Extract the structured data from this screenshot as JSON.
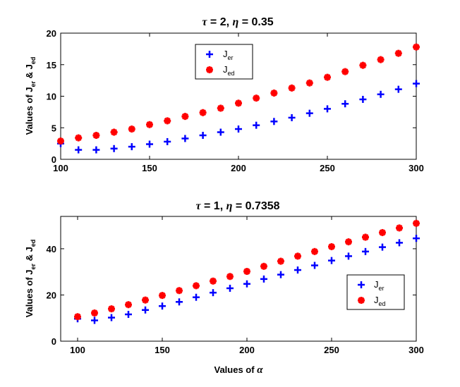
{
  "chart_data": [
    {
      "type": "scatter",
      "title_sym1": "τ",
      "title_val1": " = 2, ",
      "title_sym2": "η",
      "title_val2": " = 0.35",
      "ylabel": "Values of J",
      "ylabel_sub1": "er",
      "ylabel_mid": " & J",
      "ylabel_sub2": "ed",
      "xlim": [
        100,
        300
      ],
      "ylim": [
        0,
        20
      ],
      "xticks": [
        "100",
        "150",
        "200",
        "250",
        "300"
      ],
      "yticks": [
        "0",
        "5",
        "10",
        "15",
        "20"
      ],
      "legend_loc": "upper-middle",
      "x": [
        100,
        110,
        120,
        130,
        140,
        150,
        160,
        170,
        180,
        190,
        200,
        210,
        220,
        230,
        240,
        250,
        260,
        270,
        280,
        290,
        300
      ],
      "series": [
        {
          "name": "J",
          "sub": "er",
          "marker": "plus",
          "color": "#0000ff",
          "values": [
            2.5,
            1.5,
            1.5,
            1.7,
            2.0,
            2.4,
            2.8,
            3.3,
            3.8,
            4.3,
            4.8,
            5.4,
            6.0,
            6.6,
            7.3,
            8.0,
            8.8,
            9.5,
            10.3,
            11.1,
            12.0
          ]
        },
        {
          "name": "J",
          "sub": "ed",
          "marker": "asterisk",
          "color": "#ff0000",
          "values": [
            2.9,
            3.4,
            3.8,
            4.3,
            4.8,
            5.5,
            6.1,
            6.8,
            7.4,
            8.1,
            8.9,
            9.7,
            10.5,
            11.3,
            12.1,
            13.0,
            13.9,
            14.9,
            15.8,
            16.8,
            17.8
          ]
        }
      ]
    },
    {
      "type": "scatter",
      "title_sym1": "τ",
      "title_val1": " = 1, ",
      "title_sym2": "η",
      "title_val2": " = 0.7358",
      "ylabel": "Values of J",
      "ylabel_sub1": "er",
      "ylabel_mid": " & J",
      "ylabel_sub2": "ed",
      "xlabel": "Values of ",
      "xlabel_sym": "α",
      "xlim": [
        90,
        300
      ],
      "ylim": [
        0,
        54
      ],
      "xticks": [
        "100",
        "150",
        "200",
        "250",
        "300"
      ],
      "yticks": [
        "0",
        "20",
        "40"
      ],
      "legend_loc": "lower-right",
      "x": [
        100,
        110,
        120,
        130,
        140,
        150,
        160,
        170,
        180,
        190,
        200,
        210,
        220,
        230,
        240,
        250,
        260,
        270,
        280,
        290,
        300
      ],
      "series": [
        {
          "name": "J",
          "sub": "er",
          "marker": "plus",
          "color": "#0000ff",
          "values": [
            9.7,
            9.0,
            10.2,
            11.6,
            13.5,
            15.2,
            17.0,
            19.0,
            21.0,
            22.9,
            24.8,
            26.9,
            28.8,
            30.8,
            32.8,
            34.9,
            36.8,
            38.8,
            40.7,
            42.6,
            44.5
          ]
        },
        {
          "name": "J",
          "sub": "ed",
          "marker": "asterisk",
          "color": "#ff0000",
          "values": [
            10.6,
            12.2,
            14.0,
            15.8,
            17.8,
            19.8,
            21.9,
            24.0,
            26.0,
            28.0,
            30.2,
            32.4,
            34.6,
            36.8,
            38.8,
            40.9,
            43.0,
            45.0,
            47.0,
            49.0,
            51.0
          ]
        }
      ]
    }
  ]
}
